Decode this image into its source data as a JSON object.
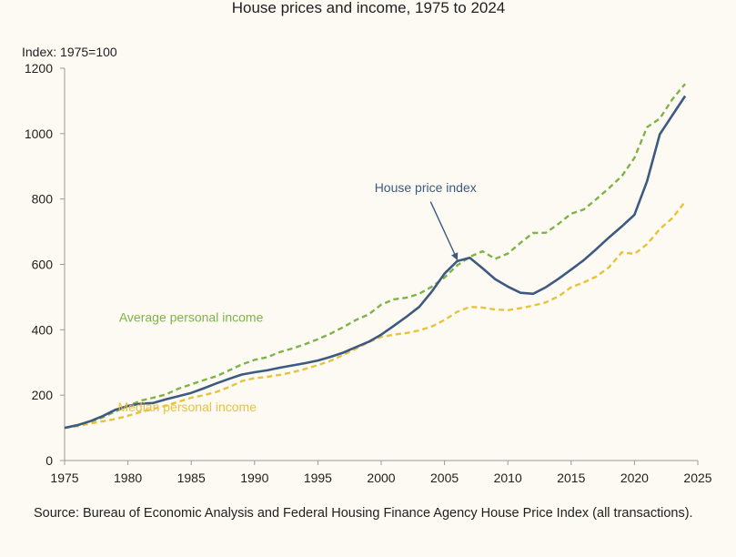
{
  "chart_data": {
    "type": "line",
    "title": "House prices and income, 1975 to 2024",
    "ylabel": "Index: 1975=100",
    "xlabel": "",
    "xlim": [
      1975,
      2025
    ],
    "ylim": [
      0,
      1200
    ],
    "xticks": [
      1975,
      1980,
      1985,
      1990,
      1995,
      2000,
      2005,
      2010,
      2015,
      2020,
      2025
    ],
    "yticks": [
      0,
      200,
      400,
      600,
      800,
      1000,
      1200
    ],
    "grid": false,
    "series": [
      {
        "name": "House price index",
        "color": "#3d5a80",
        "dash": "solid",
        "points": [
          [
            1975,
            100
          ],
          [
            1976,
            108
          ],
          [
            1977,
            120
          ],
          [
            1978,
            136
          ],
          [
            1979,
            155
          ],
          [
            1980,
            167
          ],
          [
            1981,
            174
          ],
          [
            1982,
            176
          ],
          [
            1983,
            187
          ],
          [
            1984,
            197
          ],
          [
            1985,
            207
          ],
          [
            1986,
            221
          ],
          [
            1987,
            236
          ],
          [
            1988,
            250
          ],
          [
            1989,
            263
          ],
          [
            1990,
            270
          ],
          [
            1991,
            276
          ],
          [
            1992,
            284
          ],
          [
            1993,
            291
          ],
          [
            1994,
            298
          ],
          [
            1995,
            306
          ],
          [
            1996,
            317
          ],
          [
            1997,
            330
          ],
          [
            1998,
            347
          ],
          [
            1999,
            363
          ],
          [
            2000,
            385
          ],
          [
            2001,
            412
          ],
          [
            2002,
            440
          ],
          [
            2003,
            470
          ],
          [
            2004,
            517
          ],
          [
            2005,
            572
          ],
          [
            2006,
            610
          ],
          [
            2007,
            620
          ],
          [
            2008,
            588
          ],
          [
            2009,
            555
          ],
          [
            2010,
            532
          ],
          [
            2011,
            513
          ],
          [
            2012,
            510
          ],
          [
            2013,
            530
          ],
          [
            2014,
            556
          ],
          [
            2015,
            584
          ],
          [
            2016,
            613
          ],
          [
            2017,
            647
          ],
          [
            2018,
            683
          ],
          [
            2019,
            716
          ],
          [
            2020,
            752
          ],
          [
            2021,
            855
          ],
          [
            2022,
            998
          ],
          [
            2023,
            1057
          ],
          [
            2024,
            1115
          ]
        ]
      },
      {
        "name": "Average personal income",
        "color": "#7db347",
        "dash": "dashed",
        "points": [
          [
            1975,
            100
          ],
          [
            1976,
            108
          ],
          [
            1977,
            118
          ],
          [
            1978,
            132
          ],
          [
            1979,
            150
          ],
          [
            1980,
            166
          ],
          [
            1981,
            183
          ],
          [
            1982,
            192
          ],
          [
            1983,
            202
          ],
          [
            1984,
            220
          ],
          [
            1985,
            233
          ],
          [
            1986,
            246
          ],
          [
            1987,
            258
          ],
          [
            1988,
            276
          ],
          [
            1989,
            294
          ],
          [
            1990,
            308
          ],
          [
            1991,
            316
          ],
          [
            1992,
            332
          ],
          [
            1993,
            343
          ],
          [
            1994,
            356
          ],
          [
            1995,
            371
          ],
          [
            1996,
            388
          ],
          [
            1997,
            408
          ],
          [
            1998,
            430
          ],
          [
            1999,
            447
          ],
          [
            2000,
            477
          ],
          [
            2001,
            493
          ],
          [
            2002,
            498
          ],
          [
            2003,
            510
          ],
          [
            2004,
            532
          ],
          [
            2005,
            560
          ],
          [
            2006,
            597
          ],
          [
            2007,
            623
          ],
          [
            2008,
            640
          ],
          [
            2009,
            617
          ],
          [
            2010,
            633
          ],
          [
            2011,
            666
          ],
          [
            2012,
            696
          ],
          [
            2013,
            697
          ],
          [
            2014,
            724
          ],
          [
            2015,
            755
          ],
          [
            2016,
            768
          ],
          [
            2017,
            800
          ],
          [
            2018,
            834
          ],
          [
            2019,
            870
          ],
          [
            2020,
            926
          ],
          [
            2021,
            1020
          ],
          [
            2022,
            1046
          ],
          [
            2023,
            1106
          ],
          [
            2024,
            1152
          ]
        ]
      },
      {
        "name": "Median personal income",
        "color": "#e8c23a",
        "dash": "dashed",
        "points": [
          [
            1975,
            100
          ],
          [
            1976,
            105
          ],
          [
            1977,
            113
          ],
          [
            1978,
            120
          ],
          [
            1979,
            127
          ],
          [
            1980,
            137
          ],
          [
            1981,
            148
          ],
          [
            1982,
            158
          ],
          [
            1983,
            168
          ],
          [
            1984,
            180
          ],
          [
            1985,
            192
          ],
          [
            1986,
            200
          ],
          [
            1987,
            210
          ],
          [
            1988,
            225
          ],
          [
            1989,
            243
          ],
          [
            1990,
            252
          ],
          [
            1991,
            256
          ],
          [
            1992,
            262
          ],
          [
            1993,
            270
          ],
          [
            1994,
            280
          ],
          [
            1995,
            292
          ],
          [
            1996,
            305
          ],
          [
            1997,
            323
          ],
          [
            1998,
            342
          ],
          [
            1999,
            362
          ],
          [
            2000,
            378
          ],
          [
            2001,
            385
          ],
          [
            2002,
            390
          ],
          [
            2003,
            398
          ],
          [
            2004,
            410
          ],
          [
            2005,
            430
          ],
          [
            2006,
            455
          ],
          [
            2007,
            470
          ],
          [
            2008,
            468
          ],
          [
            2009,
            462
          ],
          [
            2010,
            460
          ],
          [
            2011,
            466
          ],
          [
            2012,
            474
          ],
          [
            2013,
            484
          ],
          [
            2014,
            502
          ],
          [
            2015,
            530
          ],
          [
            2016,
            545
          ],
          [
            2017,
            563
          ],
          [
            2018,
            592
          ],
          [
            2019,
            637
          ],
          [
            2020,
            632
          ],
          [
            2021,
            662
          ],
          [
            2022,
            708
          ],
          [
            2023,
            742
          ],
          [
            2024,
            792
          ]
        ]
      }
    ],
    "annotations": [
      {
        "text": "House price index",
        "color": "#3d5a80",
        "x": 2003.5,
        "y": 822,
        "anchor": "middle",
        "arrow_to": [
          2006,
          615
        ],
        "arrow_from": [
          2003.9,
          792
        ]
      },
      {
        "text": "Average personal income",
        "color": "#7db347",
        "x": 1979.3,
        "y": 424,
        "anchor": "start"
      },
      {
        "text": "Median personal income",
        "color": "#e8c23a",
        "x": 1979.2,
        "y": 150,
        "anchor": "start"
      }
    ]
  },
  "source": "Source: Bureau of Economic Analysis and Federal Housing Finance Agency House Price Index (all transactions)."
}
